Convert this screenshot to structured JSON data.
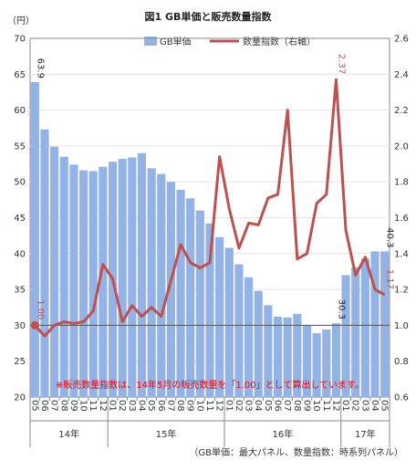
{
  "chart_data": {
    "type": "bar+line",
    "title": "図1 GB単価と販売数量指数",
    "left_axis_unit": "（円）",
    "left_ylim": [
      20,
      70
    ],
    "left_ticks": [
      20,
      25,
      30,
      35,
      40,
      45,
      50,
      55,
      60,
      65,
      70
    ],
    "right_ylim": [
      0.6,
      2.6
    ],
    "right_ticks": [
      "0.6",
      "0.8",
      "1.0",
      "1.2",
      "1.4",
      "1.6",
      "1.8",
      "2.0",
      "2.2",
      "2.4",
      "2.6"
    ],
    "categories": [
      "05",
      "06",
      "07",
      "08",
      "09",
      "10",
      "11",
      "12",
      "01",
      "02",
      "03",
      "04",
      "05",
      "06",
      "07",
      "08",
      "09",
      "10",
      "11",
      "12",
      "01",
      "02",
      "03",
      "04",
      "05",
      "06",
      "07",
      "08",
      "09",
      "10",
      "11",
      "12",
      "01",
      "02",
      "03",
      "04",
      "05"
    ],
    "year_groups": [
      {
        "label": "14年",
        "count": 8
      },
      {
        "label": "15年",
        "count": 12
      },
      {
        "label": "16年",
        "count": 12
      },
      {
        "label": "17年",
        "count": 5
      }
    ],
    "series": [
      {
        "name": "GB単価",
        "type": "bar",
        "axis": "left",
        "color": "#93b3e6",
        "values": [
          63.9,
          57.3,
          54.9,
          53.5,
          52.4,
          51.6,
          51.5,
          52.1,
          52.8,
          53.2,
          53.4,
          54.0,
          51.9,
          51.1,
          50.0,
          48.9,
          47.7,
          46.0,
          44.2,
          42.3,
          40.8,
          38.5,
          36.7,
          34.8,
          32.8,
          31.2,
          31.1,
          31.6,
          30.0,
          28.9,
          29.4,
          30.3,
          37.0,
          38.1,
          39.3,
          40.3,
          40.3
        ],
        "labels": [
          {
            "index": 0,
            "text": "63.9"
          },
          {
            "index": 31,
            "text": "30.3"
          },
          {
            "index": 36,
            "text": "40.3"
          }
        ]
      },
      {
        "name": "数量指数（右軸）",
        "type": "line",
        "axis": "right",
        "color": "#c0504d",
        "values": [
          1.0,
          0.94,
          1.0,
          1.02,
          1.01,
          1.02,
          1.08,
          1.34,
          1.26,
          1.02,
          1.11,
          1.05,
          1.1,
          1.05,
          1.25,
          1.45,
          1.35,
          1.32,
          1.35,
          1.94,
          1.65,
          1.43,
          1.57,
          1.56,
          1.71,
          1.73,
          2.2,
          1.37,
          1.4,
          1.68,
          1.73,
          2.37,
          1.53,
          1.28,
          1.38,
          1.2,
          1.17
        ],
        "labels": [
          {
            "index": 0,
            "text": "1.00"
          },
          {
            "index": 31,
            "text": "2.37"
          },
          {
            "index": 36,
            "text": "1.17"
          }
        ]
      }
    ],
    "reference_line": 1.0,
    "annotation": "※販売数量指数は、14年5月の販売数量を「1.00」として算出しています。",
    "footnote": "（GB単価：最大パネル、数量指数：時系列パネル）",
    "annotation_color": "#ff0000"
  }
}
